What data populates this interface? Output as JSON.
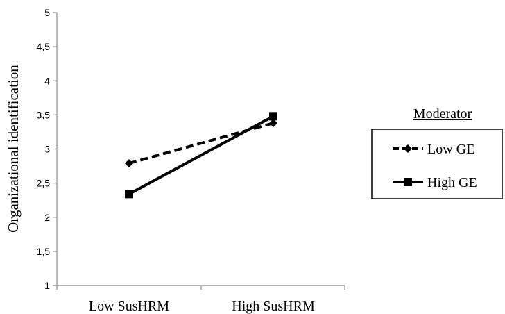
{
  "chart_data": {
    "type": "line",
    "categories": [
      "Low SusHRM",
      "High SusHRM"
    ],
    "ylabel": "Organizational  identification",
    "xlabel": "",
    "ylim": [
      1,
      5
    ],
    "y_ticks": [
      "1",
      "1,5",
      "2",
      "2,5",
      "3",
      "3,5",
      "4",
      "4,5",
      "5"
    ],
    "y_tick_values": [
      1,
      1.5,
      2,
      2.5,
      3,
      3.5,
      4,
      4.5,
      5
    ],
    "grid": false,
    "legend": {
      "title": "Moderator",
      "placement": "right"
    },
    "series": [
      {
        "name": "Low GE",
        "values": [
          2.79,
          3.38
        ],
        "line_style": "dashed",
        "marker": "diamond",
        "color": "#000000"
      },
      {
        "name": "High GE",
        "values": [
          2.34,
          3.48
        ],
        "line_style": "solid",
        "marker": "square",
        "color": "#000000"
      }
    ]
  }
}
